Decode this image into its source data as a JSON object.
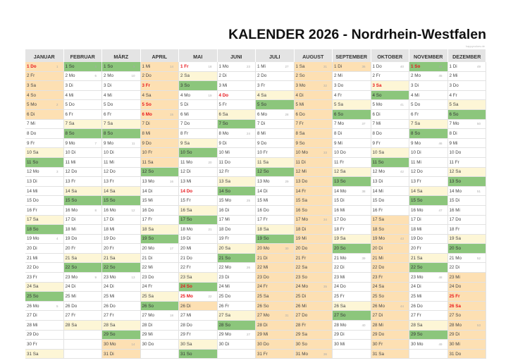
{
  "header": {
    "title": "KALENDER 2026 - Nordrhein-Westfalen",
    "watermark": "happycolors.de"
  },
  "colors": {
    "saturday": "#fdf6d6",
    "sunday": "#8cc67c",
    "school_holiday": "#fde0b3",
    "public_holiday_text": "#e8161b",
    "header_bg": "#e4e4e4"
  },
  "months": [
    {
      "name": "JANUAR",
      "days": [
        "1 Do",
        "2 Fr",
        "3 Sa",
        "4 So",
        "5 Mo",
        "6 Di",
        "7 Mi",
        "8 Do",
        "9 Fr",
        "10 Sa",
        "11 So",
        "12 Mo",
        "13 Di",
        "14 Mi",
        "15 Do",
        "16 Fr",
        "17 Sa",
        "18 So",
        "19 Mo",
        "20 Di",
        "21 Mi",
        "22 Do",
        "23 Fr",
        "24 Sa",
        "25 So",
        "26 Mo",
        "27 Di",
        "28 Mi",
        "29 Do",
        "30 Fr",
        "31 Sa"
      ],
      "weeks": {
        "1": "1",
        "5": "2",
        "12": "3",
        "19": "4",
        "26": "5"
      },
      "holidays": [
        1
      ],
      "school": [
        1,
        2,
        3,
        4,
        5,
        6
      ]
    },
    {
      "name": "FEBRUAR",
      "days": [
        "1 So",
        "2 Mo",
        "3 Di",
        "4 Mi",
        "5 Do",
        "6 Fr",
        "7 Sa",
        "8 So",
        "9 Mo",
        "10 Di",
        "11 Mi",
        "12 Do",
        "13 Fr",
        "14 Sa",
        "15 So",
        "16 Mo",
        "17 Di",
        "18 Mi",
        "19 Do",
        "20 Fr",
        "21 Sa",
        "22 So",
        "23 Mo",
        "24 Di",
        "25 Mi",
        "26 Do",
        "27 Fr",
        "28 Sa"
      ],
      "weeks": {
        "1": "5",
        "2": "6",
        "9": "7",
        "16": "8",
        "23": "9"
      },
      "holidays": [],
      "school": []
    },
    {
      "name": "MÄRZ",
      "days": [
        "1 So",
        "2 Mo",
        "3 Di",
        "4 Mi",
        "5 Do",
        "6 Fr",
        "7 Sa",
        "8 So",
        "9 Mo",
        "10 Di",
        "11 Mi",
        "12 Do",
        "13 Fr",
        "14 Sa",
        "15 So",
        "16 Mo",
        "17 Di",
        "18 Mi",
        "19 Do",
        "20 Fr",
        "21 Sa",
        "22 So",
        "23 Mo",
        "24 Di",
        "25 Mi",
        "26 Do",
        "27 Fr",
        "28 Sa",
        "29 So",
        "30 Mo",
        "31 Di"
      ],
      "weeks": {
        "1": "9",
        "2": "10",
        "9": "11",
        "16": "12",
        "23": "13",
        "30": "14"
      },
      "holidays": [],
      "school": [
        30,
        31
      ]
    },
    {
      "name": "APRIL",
      "days": [
        "1 Mi",
        "2 Do",
        "3 Fr",
        "4 Sa",
        "5 So",
        "6 Mo",
        "7 Di",
        "8 Mi",
        "9 Do",
        "10 Fr",
        "11 Sa",
        "12 So",
        "13 Mo",
        "14 Di",
        "15 Mi",
        "16 Do",
        "17 Fr",
        "18 Sa",
        "19 So",
        "20 Mo",
        "21 Di",
        "22 Mi",
        "23 Do",
        "24 Fr",
        "25 Sa",
        "26 So",
        "27 Mo",
        "28 Di",
        "29 Mi",
        "30 Do"
      ],
      "weeks": {
        "1": "14",
        "6": "15",
        "13": "16",
        "20": "17",
        "27": "18"
      },
      "holidays": [
        3,
        5,
        6
      ],
      "school": [
        1,
        2,
        3,
        4,
        5,
        6,
        7,
        8,
        9,
        10,
        11
      ]
    },
    {
      "name": "MAI",
      "days": [
        "1 Fr",
        "2 Sa",
        "3 So",
        "4 Mo",
        "5 Di",
        "6 Mi",
        "7 Do",
        "8 Fr",
        "9 Sa",
        "10 So",
        "11 Mo",
        "12 Di",
        "13 Mi",
        "14 Do",
        "15 Fr",
        "16 Sa",
        "17 So",
        "18 Mo",
        "19 Di",
        "20 Mi",
        "21 Do",
        "22 Fr",
        "23 Sa",
        "24 So",
        "25 Mo",
        "26 Di",
        "27 Mi",
        "28 Do",
        "29 Fr",
        "30 Sa",
        "31 So"
      ],
      "weeks": {
        "1": "18",
        "4": "19",
        "11": "20",
        "18": "21",
        "25": "22"
      },
      "holidays": [
        1,
        14,
        24,
        25
      ],
      "school": [
        26
      ]
    },
    {
      "name": "JUNI",
      "days": [
        "1 Mo",
        "2 Di",
        "3 Mi",
        "4 Do",
        "5 Fr",
        "6 Sa",
        "7 So",
        "8 Mo",
        "9 Di",
        "10 Mi",
        "11 Do",
        "12 Fr",
        "13 Sa",
        "14 So",
        "15 Mo",
        "16 Di",
        "17 Mi",
        "18 Do",
        "19 Fr",
        "20 Sa",
        "21 So",
        "22 Mo",
        "23 Di",
        "24 Mi",
        "25 Do",
        "26 Fr",
        "27 Sa",
        "28 So",
        "29 Mo",
        "30 Di"
      ],
      "weeks": {
        "1": "23",
        "8": "24",
        "15": "25",
        "22": "26",
        "29": "27"
      },
      "holidays": [
        4
      ],
      "school": []
    },
    {
      "name": "JULI",
      "days": [
        "1 Mi",
        "2 Do",
        "3 Fr",
        "4 Sa",
        "5 So",
        "6 Mo",
        "7 Di",
        "8 Mi",
        "9 Do",
        "10 Fr",
        "11 Sa",
        "12 So",
        "13 Mo",
        "14 Di",
        "15 Mi",
        "16 Do",
        "17 Fr",
        "18 Sa",
        "19 So",
        "20 Mo",
        "21 Di",
        "22 Mi",
        "23 Do",
        "24 Fr",
        "25 Sa",
        "26 So",
        "27 Mo",
        "28 Di",
        "29 Mi",
        "30 Do",
        "31 Fr"
      ],
      "weeks": {
        "1": "27",
        "6": "28",
        "13": "29",
        "20": "30",
        "27": "31"
      },
      "holidays": [],
      "school": [
        20,
        21,
        22,
        23,
        24,
        25,
        26,
        27,
        28,
        29,
        30,
        31
      ]
    },
    {
      "name": "AUGUST",
      "days": [
        "1 Sa",
        "2 So",
        "3 Mo",
        "4 Di",
        "5 Mi",
        "6 Do",
        "7 Fr",
        "8 Sa",
        "9 So",
        "10 Mo",
        "11 Di",
        "12 Mi",
        "13 Do",
        "14 Fr",
        "15 Sa",
        "16 So",
        "17 Mo",
        "18 Di",
        "19 Mi",
        "20 Do",
        "21 Fr",
        "22 Sa",
        "23 So",
        "24 Mo",
        "25 Di",
        "26 Mi",
        "27 Do",
        "28 Fr",
        "29 Sa",
        "30 So",
        "31 Mo"
      ],
      "weeks": {
        "1": "31",
        "3": "32",
        "10": "33",
        "17": "34",
        "24": "35",
        "31": "36"
      },
      "holidays": [],
      "school": [
        1,
        2,
        3,
        4,
        5,
        6,
        7,
        8,
        9,
        10,
        11,
        12,
        13,
        14,
        15,
        16,
        17,
        18,
        19,
        20,
        21,
        22,
        23,
        24,
        25,
        26,
        27,
        28,
        29,
        30,
        31
      ]
    },
    {
      "name": "SEPTEMBER",
      "days": [
        "1 Di",
        "2 Mi",
        "3 Do",
        "4 Fr",
        "5 Sa",
        "6 So",
        "7 Mo",
        "8 Di",
        "9 Mi",
        "10 Do",
        "11 Fr",
        "12 Sa",
        "13 So",
        "14 Mo",
        "15 Di",
        "16 Mi",
        "17 Do",
        "18 Fr",
        "19 Sa",
        "20 So",
        "21 Mo",
        "22 Di",
        "23 Mi",
        "24 Do",
        "25 Fr",
        "26 Sa",
        "27 So",
        "28 Mo",
        "29 Di",
        "30 Mi"
      ],
      "weeks": {
        "1": "36",
        "7": "37",
        "14": "38",
        "21": "39",
        "28": "40"
      },
      "holidays": [],
      "school": [
        1
      ]
    },
    {
      "name": "OKTOBER",
      "days": [
        "1 Do",
        "2 Fr",
        "3 Sa",
        "4 So",
        "5 Mo",
        "6 Di",
        "7 Mi",
        "8 Do",
        "9 Fr",
        "10 Sa",
        "11 So",
        "12 Mo",
        "13 Di",
        "14 Mi",
        "15 Do",
        "16 Fr",
        "17 Sa",
        "18 So",
        "19 Mo",
        "20 Di",
        "21 Mi",
        "22 Do",
        "23 Fr",
        "24 Sa",
        "25 So",
        "26 Mo",
        "27 Di",
        "28 Mi",
        "29 Do",
        "30 Fr",
        "31 Sa"
      ],
      "weeks": {
        "1": "40",
        "5": "41",
        "12": "42",
        "19": "43",
        "26": "44"
      },
      "holidays": [
        3
      ],
      "school": [
        17,
        18,
        19,
        20,
        21,
        22,
        23,
        24,
        25,
        26,
        27,
        28,
        29,
        30,
        31
      ]
    },
    {
      "name": "NOVEMBER",
      "days": [
        "1 So",
        "2 Mo",
        "3 Di",
        "4 Mi",
        "5 Do",
        "6 Fr",
        "7 Sa",
        "8 So",
        "9 Mo",
        "10 Di",
        "11 Mi",
        "12 Do",
        "13 Fr",
        "14 Sa",
        "15 So",
        "16 Mo",
        "17 Di",
        "18 Mi",
        "19 Do",
        "20 Fr",
        "21 Sa",
        "22 So",
        "23 Mo",
        "24 Di",
        "25 Mi",
        "26 Do",
        "27 Fr",
        "28 Sa",
        "29 So",
        "30 Mo"
      ],
      "weeks": {
        "1": "44",
        "2": "45",
        "9": "46",
        "16": "47",
        "23": "48",
        "30": "49"
      },
      "holidays": [
        1
      ],
      "school": []
    },
    {
      "name": "DEZEMBER",
      "days": [
        "1 Di",
        "2 Mi",
        "3 Do",
        "4 Fr",
        "5 Sa",
        "6 So",
        "7 Mo",
        "8 Di",
        "9 Mi",
        "10 Do",
        "11 Fr",
        "12 Sa",
        "13 So",
        "14 Mo",
        "15 Di",
        "16 Mi",
        "17 Do",
        "18 Fr",
        "19 Sa",
        "20 So",
        "21 Mo",
        "22 Di",
        "23 Mi",
        "24 Do",
        "25 Fr",
        "26 Sa",
        "27 So",
        "28 Mo",
        "29 Di",
        "30 Mi",
        "31 Do"
      ],
      "weeks": {
        "1": "49",
        "7": "50",
        "14": "51",
        "21": "52",
        "28": "53"
      },
      "holidays": [
        25,
        26
      ],
      "school": [
        23,
        24,
        25,
        26,
        27,
        28,
        29,
        30,
        31
      ]
    }
  ]
}
